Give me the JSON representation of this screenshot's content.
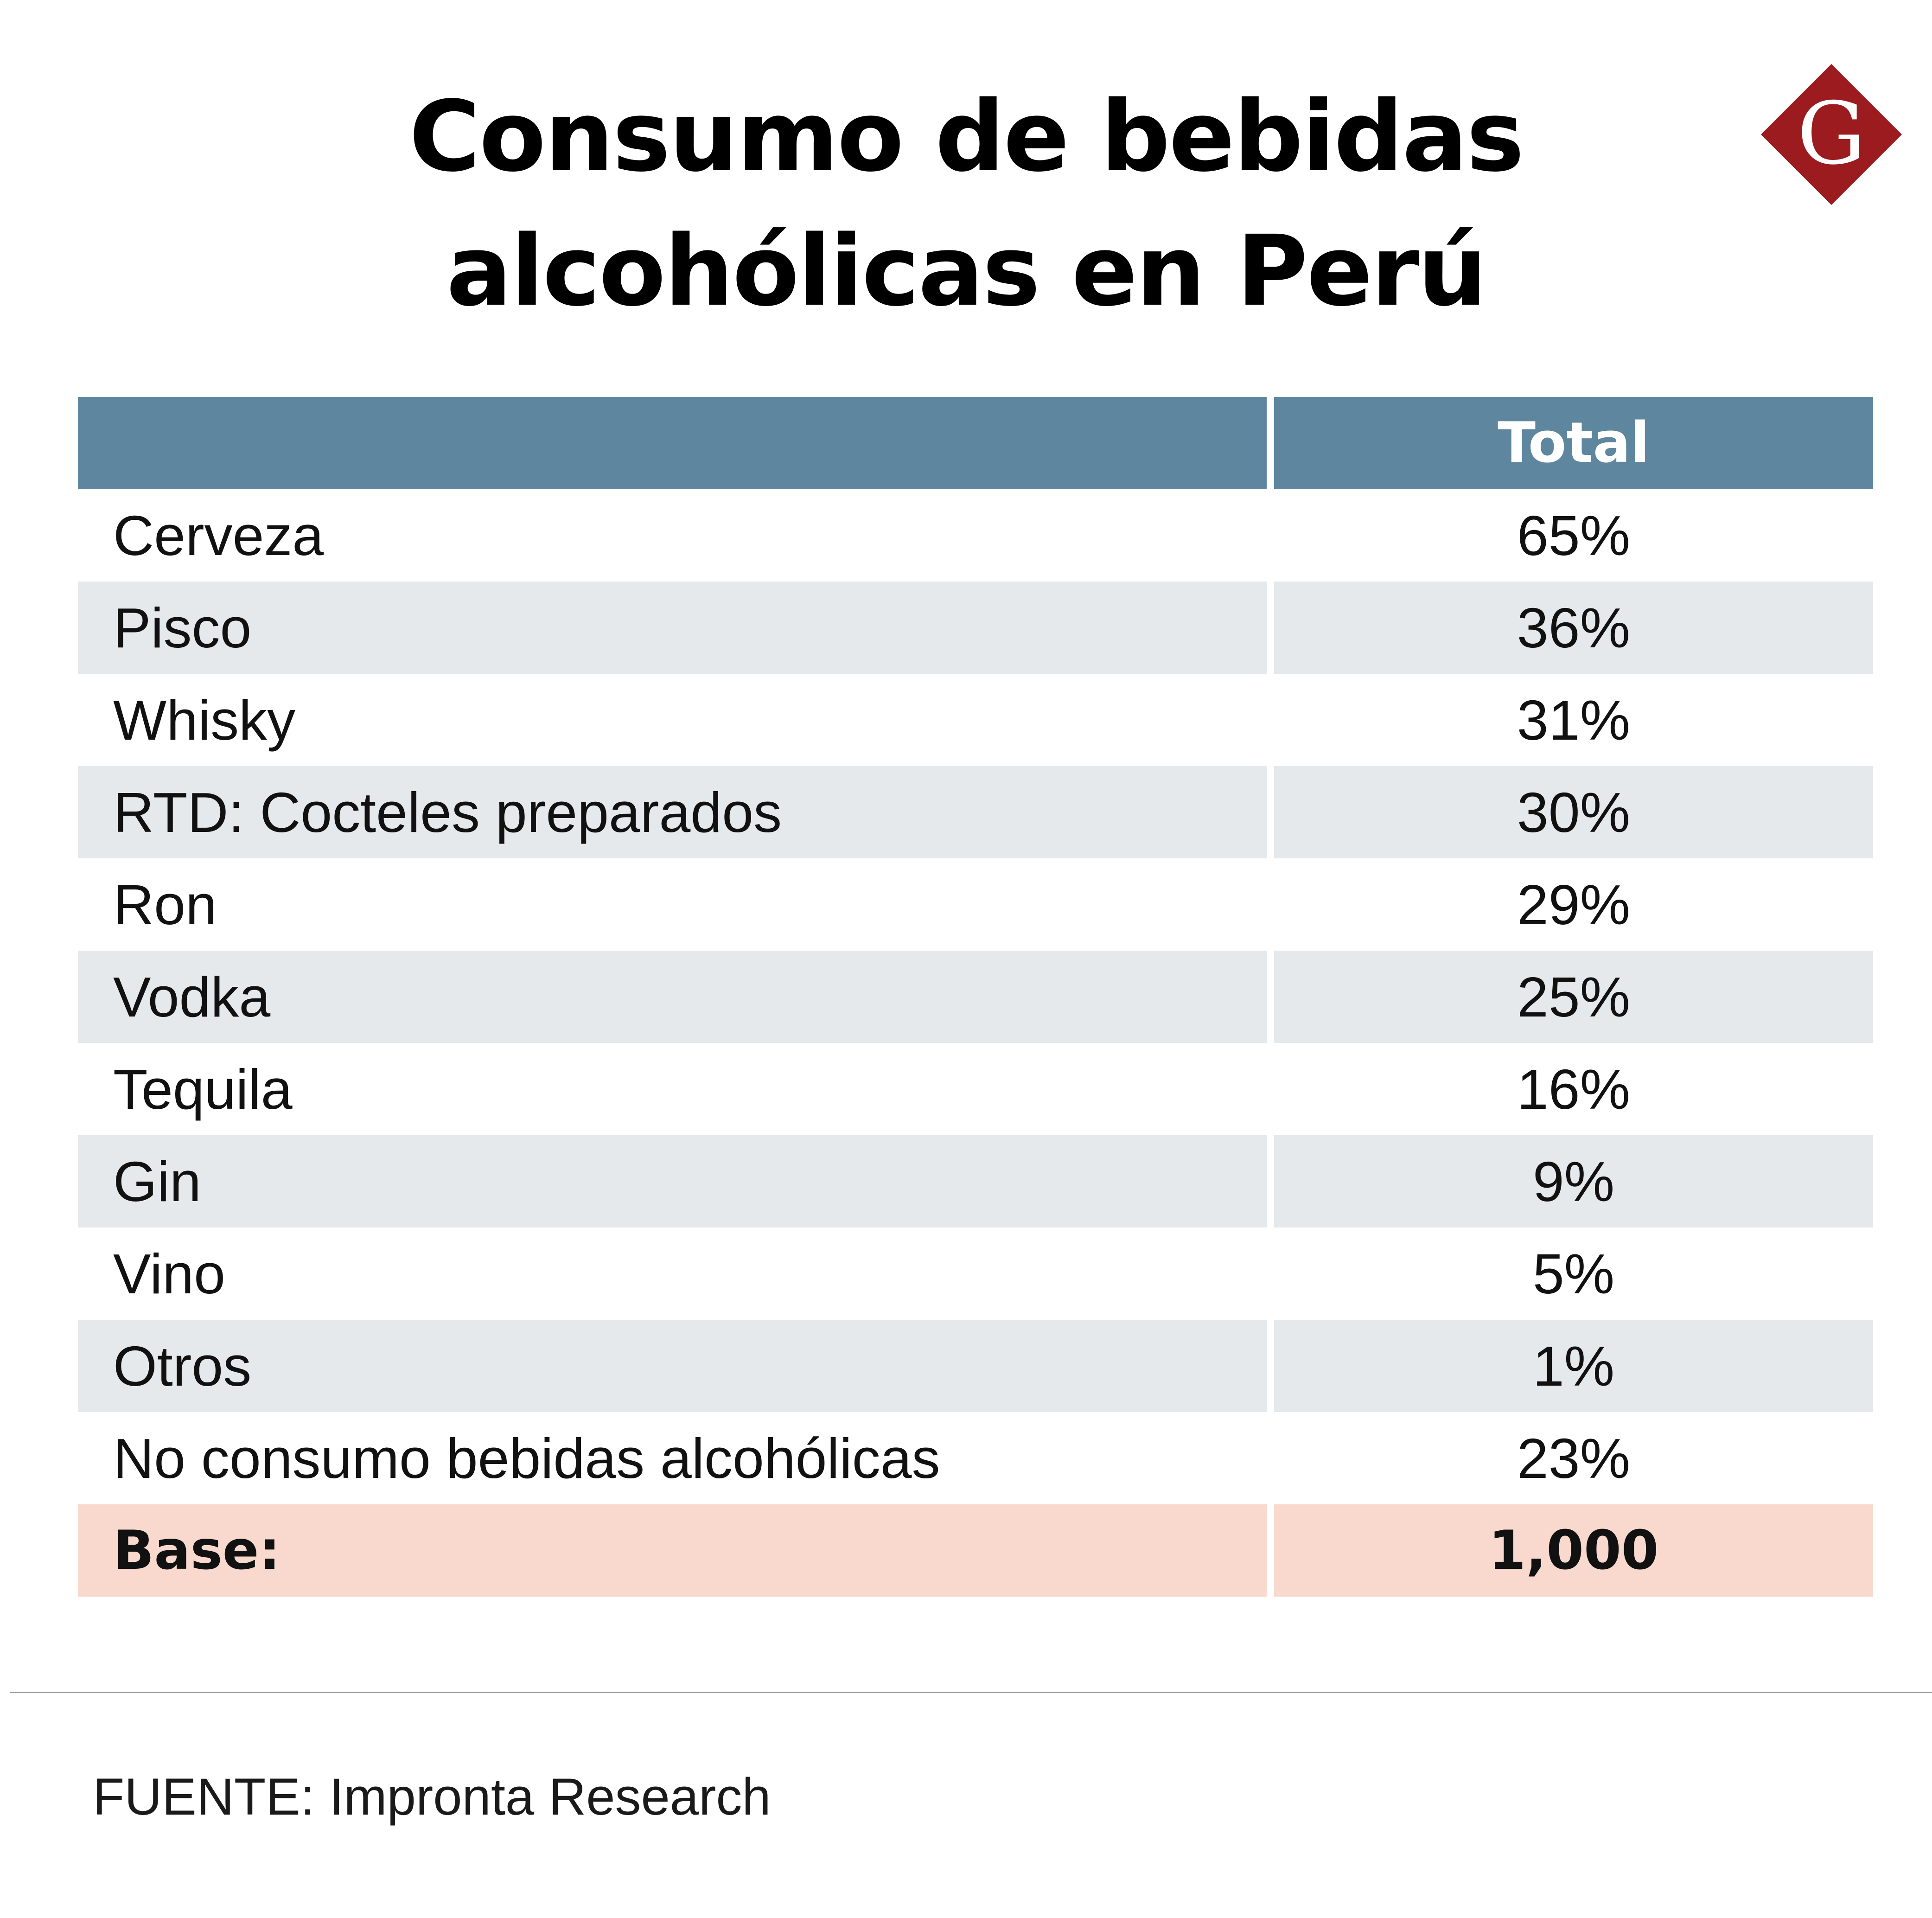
{
  "title": {
    "line1": "Consumo de bebidas",
    "line2": "alcohólicas en Perú"
  },
  "logo": {
    "letter": "G",
    "color": "#9b1b1f"
  },
  "table": {
    "header": {
      "col1": "",
      "col2": "Total"
    },
    "rows": [
      {
        "label": "Cerveza",
        "value": "65%"
      },
      {
        "label": "Pisco",
        "value": "36%"
      },
      {
        "label": "Whisky",
        "value": "31%"
      },
      {
        "label": "RTD: Cocteles preparados",
        "value": "30%"
      },
      {
        "label": "Ron",
        "value": "29%"
      },
      {
        "label": "Vodka",
        "value": "25%"
      },
      {
        "label": "Tequila",
        "value": "16%"
      },
      {
        "label": "Gin",
        "value": "9%"
      },
      {
        "label": "Vino",
        "value": "5%"
      },
      {
        "label": "Otros",
        "value": "1%"
      },
      {
        "label": "No consumo bebidas alcohólicas",
        "value": "23%"
      }
    ],
    "base": {
      "label": "Base:",
      "value": "1,000"
    }
  },
  "source": "FUENTE: Impronta Research",
  "colors": {
    "header_bg": "#5e879f",
    "alt_row_bg": "#e6e9ec",
    "base_row_bg": "#f9d9cd"
  },
  "chart_data": {
    "type": "table",
    "title": "Consumo de bebidas alcohólicas en Perú",
    "columns": [
      "",
      "Total"
    ],
    "categories": [
      "Cerveza",
      "Pisco",
      "Whisky",
      "RTD: Cocteles preparados",
      "Ron",
      "Vodka",
      "Tequila",
      "Gin",
      "Vino",
      "Otros",
      "No consumo bebidas alcohólicas"
    ],
    "values": [
      65,
      36,
      31,
      30,
      29,
      25,
      16,
      9,
      5,
      1,
      23
    ],
    "unit": "%",
    "base": 1000,
    "source": "FUENTE: Impronta Research"
  }
}
